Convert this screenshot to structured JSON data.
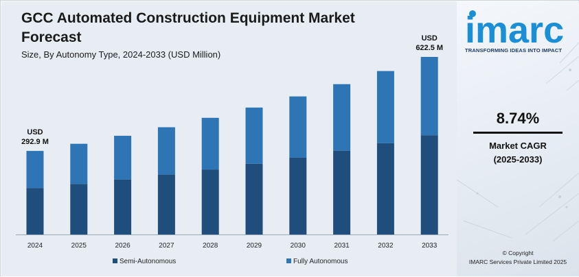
{
  "colors": {
    "semi_autonomous": "#1f4e7d",
    "fully_autonomous": "#2e75b6",
    "brand": "#1a8fd6"
  },
  "chart_data": {
    "type": "bar",
    "stacked": true,
    "title": "GCC Automated Construction Equipment Market Forecast",
    "subtitle": "Size, By Autonomy Type, 2024-2033 (USD Million)",
    "categories": [
      "2024",
      "2025",
      "2026",
      "2027",
      "2028",
      "2029",
      "2030",
      "2031",
      "2032",
      "2033"
    ],
    "series": [
      {
        "name": "Semi-Autonomous",
        "values": [
          163,
          177,
          193,
          210,
          228,
          248,
          270,
          294,
          320,
          348
        ]
      },
      {
        "name": "Fully Autonomous",
        "values": [
          130,
          141,
          153,
          166,
          181,
          197,
          214,
          233,
          253,
          274.5
        ]
      }
    ],
    "annotations": [
      {
        "category": "2024",
        "line1": "USD",
        "line2": "292.9 M"
      },
      {
        "category": "2033",
        "line1": "USD",
        "line2": "622.5 M"
      }
    ],
    "ylim": [
      0,
      700
    ],
    "grid": false,
    "legend_position": "bottom"
  },
  "brand": {
    "logo_text": "imarc",
    "tagline": "TRANSFORMING IDEAS INTO IMPACT"
  },
  "cagr": {
    "value": "8.74%",
    "label": "Market CAGR",
    "period": "(2025-2033)"
  },
  "footer": {
    "copyright": "© Copyright",
    "company": "IMARC Services Private Limited 2025"
  }
}
